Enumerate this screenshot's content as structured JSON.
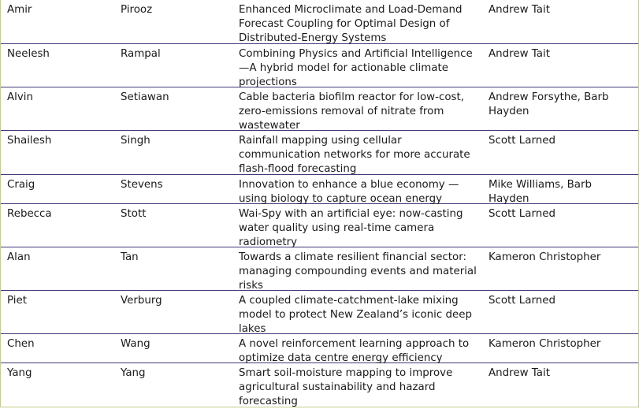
{
  "rows": [
    {
      "first": "Amir",
      "last": "Pirooz",
      "title": "Enhanced Microclimate and Load-Demand Forecast Coupling for Optimal Design of Distributed-Energy Systems",
      "supervisors": "Andrew Tait"
    },
    {
      "first": "Neelesh",
      "last": "Rampal",
      "title": "Combining Physics and Artificial Intelligence—A hybrid model for actionable climate projections",
      "supervisors": "Andrew Tait"
    },
    {
      "first": "Alvin",
      "last": "Setiawan",
      "title": "Cable bacteria biofilm reactor for low-cost, zero-emissions removal of nitrate from wastewater",
      "supervisors": "Andrew Forsythe, Barb Hayden"
    },
    {
      "first": "Shailesh",
      "last": "Singh",
      "title": "Rainfall mapping using cellular communication networks for more accurate flash-flood forecasting",
      "supervisors": "Scott Larned"
    },
    {
      "first": "Craig",
      "last": "Stevens",
      "title": "Innovation to enhance a blue economy —using biology to capture ocean energy",
      "supervisors": "Mike Williams, Barb Hayden"
    },
    {
      "first": "Rebecca",
      "last": "Stott",
      "title": "Wai-Spy with an artificial eye: now-casting water quality using real-time camera radiometry",
      "supervisors": "Scott Larned"
    },
    {
      "first": "Alan",
      "last": "Tan",
      "title": "Towards a climate resilient financial sector: managing compounding events and material risks",
      "supervisors": "Kameron Christopher"
    },
    {
      "first": "Piet",
      "last": "Verburg",
      "title": "A coupled climate-catchment-lake mixing model to protect New Zealand’s iconic deep lakes",
      "supervisors": "Scott Larned"
    },
    {
      "first": "Chen",
      "last": "Wang",
      "title": "A novel reinforcement learning approach to optimize data centre energy efficiency",
      "supervisors": "Kameron Christopher"
    },
    {
      "first": "Yang",
      "last": "Yang",
      "title": "Smart soil-moisture mapping to improve agricultural sustainability and hazard forecasting",
      "supervisors": "Andrew Tait"
    }
  ]
}
